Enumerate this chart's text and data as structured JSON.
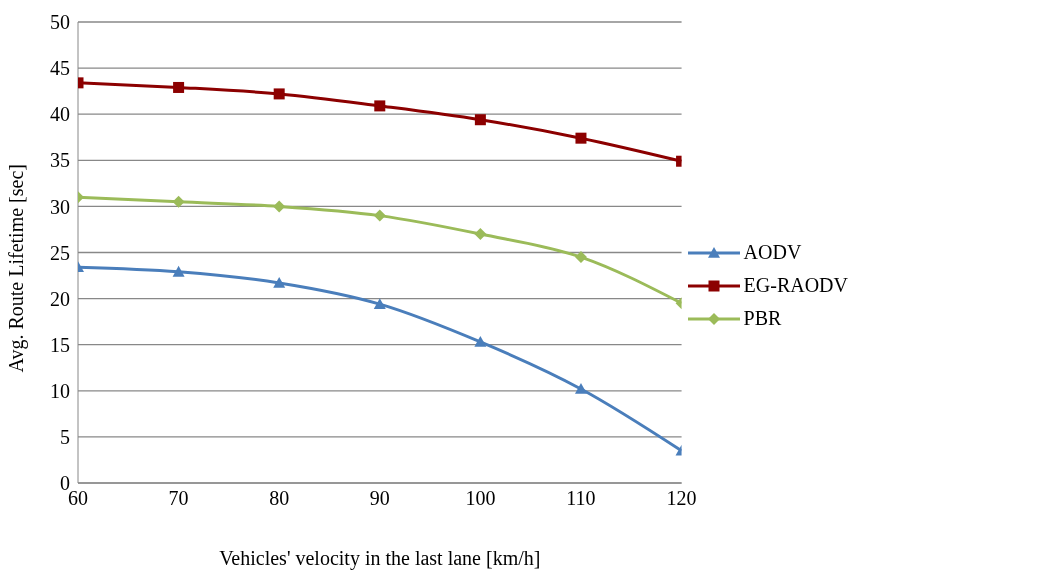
{
  "chart_data": {
    "type": "line",
    "xlabel": "Vehicles' velocity in the last lane [km/h]",
    "ylabel": "Avg. Route Lifetime [sec]",
    "x": [
      60,
      70,
      80,
      90,
      100,
      110,
      120
    ],
    "series": [
      {
        "name": "AODV",
        "color": "#4a7ebb",
        "marker": "triangle",
        "values": [
          23.4,
          22.9,
          21.7,
          19.4,
          15.3,
          10.2,
          3.5
        ]
      },
      {
        "name": "EG-RAODV",
        "color": "#8c0000",
        "marker": "square",
        "values": [
          43.4,
          42.9,
          42.2,
          40.9,
          39.4,
          37.4,
          34.9
        ]
      },
      {
        "name": "PBR",
        "color": "#9bbb59",
        "marker": "diamond",
        "values": [
          31,
          30.5,
          30,
          29,
          27,
          24.5,
          19.5
        ]
      }
    ],
    "xlim": [
      60,
      120
    ],
    "xticks": [
      60,
      70,
      80,
      90,
      100,
      110,
      120
    ],
    "ylim": [
      0,
      50
    ],
    "yticks": [
      0,
      5,
      10,
      15,
      20,
      25,
      30,
      35,
      40,
      45,
      50
    ],
    "grid": "y",
    "legend": "right",
    "line_style": "solid"
  }
}
